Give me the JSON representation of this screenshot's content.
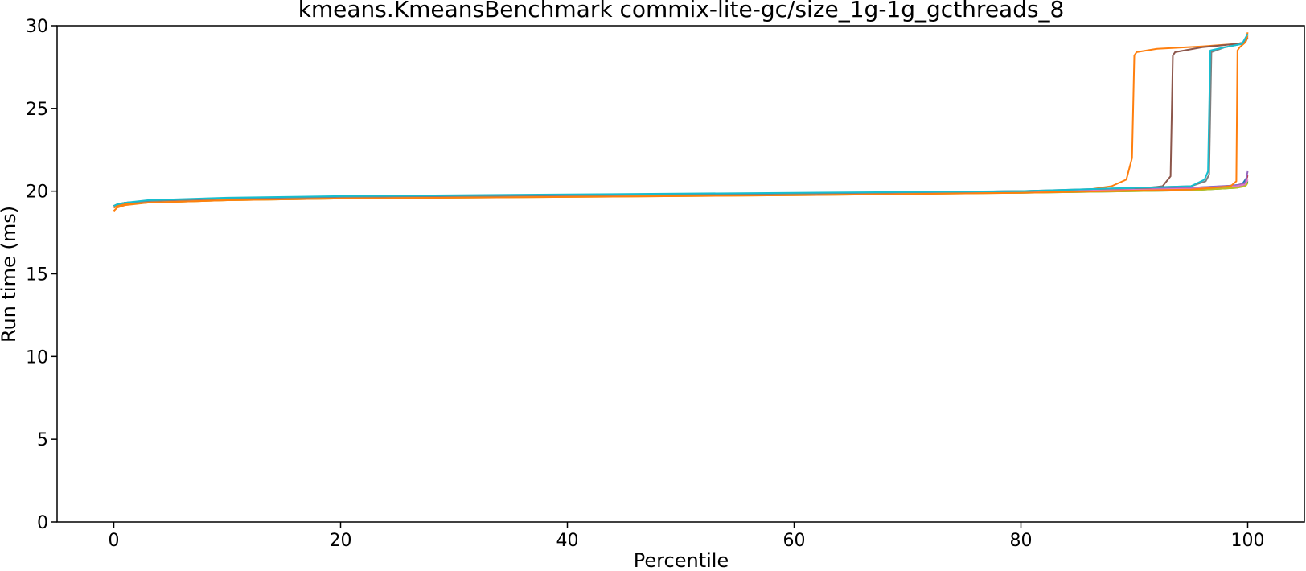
{
  "chart_data": {
    "type": "line",
    "title": "kmeans.KmeansBenchmark commix-lite-gc/size_1g-1g_gcthreads_8",
    "xlabel": "Percentile",
    "ylabel": "Run time (ms)",
    "xlim": [
      -5,
      105
    ],
    "ylim": [
      0,
      30
    ],
    "xticks": [
      0,
      20,
      40,
      60,
      80,
      100
    ],
    "yticks": [
      0,
      5,
      10,
      15,
      20,
      25,
      30
    ],
    "grid": false,
    "legend": "none",
    "series": [
      {
        "color": "#1f77b4",
        "x": [
          0,
          0.3,
          1,
          3,
          10,
          20,
          40,
          60,
          80,
          95,
          98,
          99.5,
          100
        ],
        "y": [
          19.0,
          19.15,
          19.25,
          19.4,
          19.55,
          19.65,
          19.75,
          19.85,
          20.0,
          20.2,
          20.3,
          20.4,
          20.9
        ]
      },
      {
        "color": "#ff7f0e",
        "x": [
          0,
          0.3,
          1,
          3,
          10,
          20,
          40,
          60,
          80,
          86,
          88,
          89.3,
          89.8,
          90,
          90.2,
          92,
          96,
          99,
          99.8,
          100
        ],
        "y": [
          18.8,
          19.0,
          19.15,
          19.3,
          19.45,
          19.55,
          19.7,
          19.8,
          19.95,
          20.1,
          20.3,
          20.7,
          22.0,
          28.2,
          28.4,
          28.6,
          28.75,
          28.9,
          29.0,
          29.6
        ]
      },
      {
        "color": "#2ca02c",
        "x": [
          0,
          0.3,
          1,
          3,
          10,
          20,
          40,
          60,
          80,
          95,
          99,
          99.8,
          100
        ],
        "y": [
          19.1,
          19.2,
          19.3,
          19.4,
          19.5,
          19.6,
          19.7,
          19.8,
          19.9,
          20.05,
          20.2,
          20.35,
          20.6
        ]
      },
      {
        "color": "#d62728",
        "x": [
          0,
          0.3,
          1,
          3,
          10,
          20,
          40,
          60,
          80,
          95,
          99,
          99.8,
          100
        ],
        "y": [
          19.0,
          19.1,
          19.25,
          19.4,
          19.5,
          19.6,
          19.75,
          19.85,
          19.95,
          20.15,
          20.3,
          20.45,
          21.0
        ]
      },
      {
        "color": "#9467bd",
        "x": [
          0,
          0.3,
          1,
          3,
          10,
          20,
          40,
          60,
          80,
          95,
          99,
          99.8,
          100
        ],
        "y": [
          19.05,
          19.15,
          19.25,
          19.35,
          19.5,
          19.6,
          19.7,
          19.8,
          19.95,
          20.2,
          20.35,
          20.5,
          21.2
        ]
      },
      {
        "color": "#8c564b",
        "x": [
          0,
          0.3,
          1,
          3,
          10,
          20,
          40,
          60,
          80,
          90,
          92.5,
          93.2,
          93.4,
          93.6,
          96,
          99,
          99.8,
          100
        ],
        "y": [
          19.1,
          19.2,
          19.3,
          19.4,
          19.55,
          19.65,
          19.75,
          19.85,
          20.0,
          20.1,
          20.3,
          20.9,
          28.2,
          28.4,
          28.7,
          28.9,
          29.0,
          29.3
        ]
      },
      {
        "color": "#e377c2",
        "x": [
          0,
          0.3,
          1,
          3,
          10,
          20,
          40,
          60,
          80,
          95,
          99,
          99.8,
          100
        ],
        "y": [
          19.0,
          19.1,
          19.2,
          19.35,
          19.5,
          19.6,
          19.7,
          19.8,
          19.95,
          20.15,
          20.3,
          20.4,
          20.7
        ]
      },
      {
        "color": "#7f7f7f",
        "x": [
          0,
          0.3,
          1,
          3,
          10,
          20,
          40,
          60,
          80,
          95,
          96.3,
          96.6,
          96.8,
          98,
          99.5,
          100
        ],
        "y": [
          19.1,
          19.2,
          19.3,
          19.4,
          19.55,
          19.65,
          19.75,
          19.85,
          20.0,
          20.3,
          20.6,
          21.0,
          28.4,
          28.7,
          28.9,
          29.3
        ]
      },
      {
        "color": "#bcbd22",
        "x": [
          0,
          0.3,
          1,
          3,
          10,
          20,
          40,
          60,
          80,
          95,
          99,
          99.8,
          100
        ],
        "y": [
          19.0,
          19.1,
          19.2,
          19.3,
          19.45,
          19.55,
          19.65,
          19.75,
          19.9,
          20.05,
          20.2,
          20.3,
          20.5
        ]
      },
      {
        "color": "#ff7f0e",
        "x": [
          0,
          0.3,
          1,
          3,
          10,
          20,
          40,
          60,
          80,
          95,
          98.5,
          99,
          99.1,
          99.3,
          99.8,
          100
        ],
        "y": [
          19.0,
          19.1,
          19.2,
          19.3,
          19.45,
          19.55,
          19.65,
          19.75,
          19.9,
          20.1,
          20.3,
          20.6,
          28.5,
          28.7,
          29.0,
          29.4
        ]
      },
      {
        "color": "#17becf",
        "x": [
          0,
          0.3,
          1,
          3,
          10,
          20,
          40,
          60,
          80,
          95,
          96.2,
          96.5,
          96.7,
          98,
          99.5,
          100
        ],
        "y": [
          19.1,
          19.2,
          19.3,
          19.45,
          19.6,
          19.7,
          19.8,
          19.9,
          20.0,
          20.3,
          20.7,
          21.2,
          28.5,
          28.7,
          28.9,
          29.5
        ]
      }
    ]
  }
}
